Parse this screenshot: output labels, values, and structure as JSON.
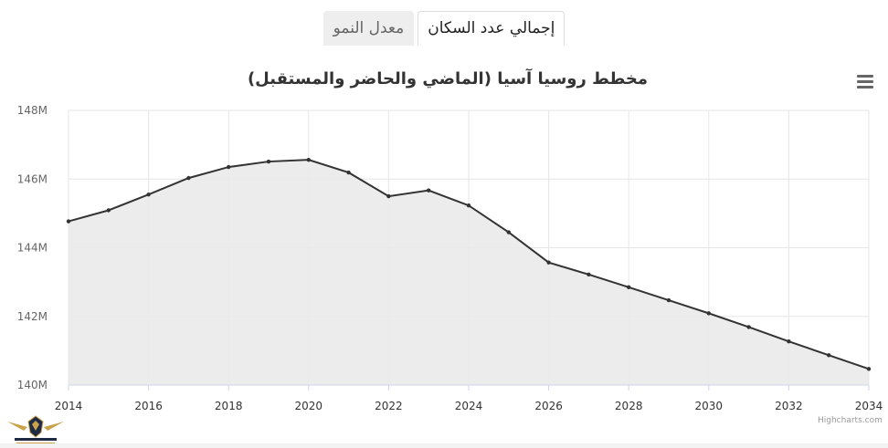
{
  "tabs": [
    {
      "label": "إجمالي عدد السكان",
      "active": true
    },
    {
      "label": "معدل النمو",
      "active": false
    }
  ],
  "credits": "Highcharts.com",
  "menu_icon": "hamburger-menu-icon",
  "logo": {
    "name": "arab-defense-forum-logo",
    "text": "ARAB DEFENSE FORUM"
  },
  "colors": {
    "line": "#333333",
    "area": "#eaeaea",
    "grid": "#e6e6e6",
    "axis": "#ccd6eb"
  },
  "chart_data": {
    "type": "area",
    "title": "مخطط روسيا آسيا (الماضي والحاضر والمستقبل)",
    "xlabel": "",
    "ylabel": "",
    "x": [
      2014,
      2015,
      2016,
      2017,
      2018,
      2019,
      2020,
      2021,
      2022,
      2023,
      2024,
      2025,
      2026,
      2027,
      2028,
      2029,
      2030,
      2031,
      2032,
      2033,
      2034
    ],
    "values": [
      144.77,
      145.09,
      145.55,
      146.03,
      146.35,
      146.51,
      146.56,
      146.19,
      145.5,
      145.67,
      145.23,
      144.45,
      143.57,
      143.22,
      142.85,
      142.47,
      142.09,
      141.69,
      141.27,
      140.87,
      140.47
    ],
    "unit": "M",
    "ylim": [
      140,
      148
    ],
    "xlim": [
      2014,
      2034
    ],
    "yticks": [
      "140M",
      "142M",
      "144M",
      "146M",
      "148M"
    ],
    "xticks": [
      "2014",
      "2016",
      "2018",
      "2020",
      "2022",
      "2024",
      "2026",
      "2028",
      "2030",
      "2032",
      "2034"
    ],
    "grid": true,
    "legend": "none"
  }
}
